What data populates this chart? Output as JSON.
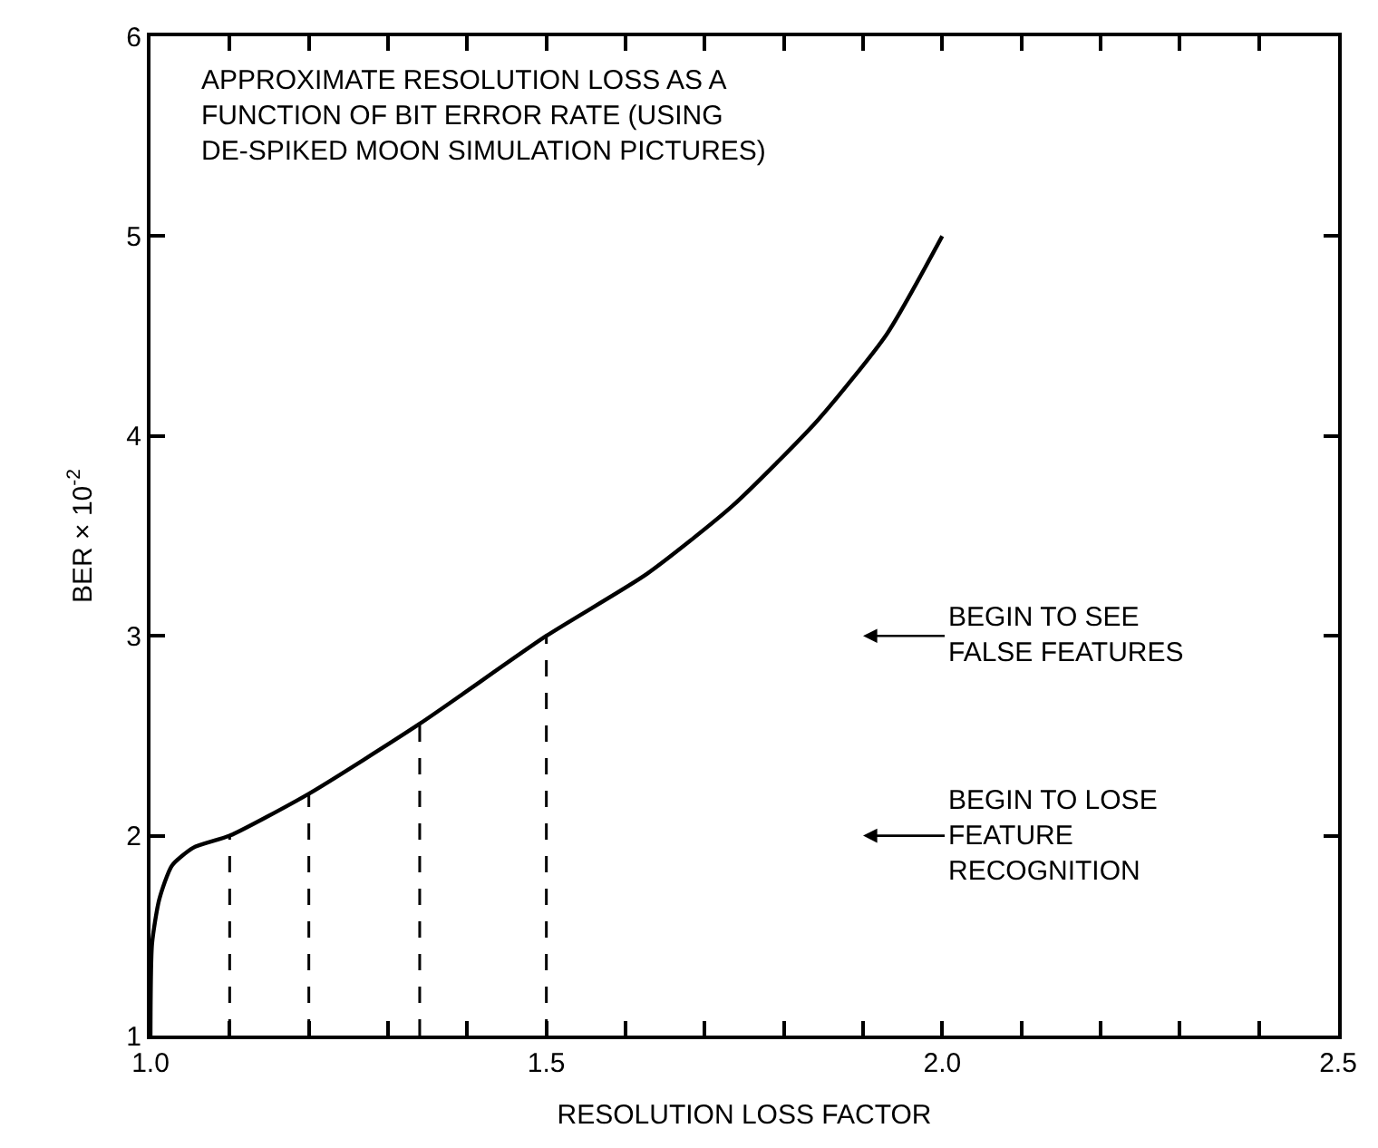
{
  "chart_data": {
    "type": "line",
    "title": "APPROXIMATE RESOLUTION LOSS AS A\nFUNCTION OF BIT ERROR RATE (USING\nDE-SPIKED MOON SIMULATION PICTURES)",
    "xlabel": "RESOLUTION LOSS FACTOR",
    "ylabel": "BER × 10$^{-2}$",
    "xlim": [
      1.0,
      2.5
    ],
    "ylim": [
      1,
      6
    ],
    "xticks": [
      {
        "value": 1.0,
        "label": "1.0"
      },
      {
        "value": 1.1,
        "label": null
      },
      {
        "value": 1.2,
        "label": null
      },
      {
        "value": 1.3,
        "label": null
      },
      {
        "value": 1.4,
        "label": null
      },
      1.5,
      {
        "value": 1.6,
        "label": null
      },
      {
        "value": 1.7,
        "label": null
      },
      {
        "value": 1.8,
        "label": null
      },
      {
        "value": 1.9,
        "label": null
      },
      {
        "value": 2.0,
        "label": "2.0"
      },
      {
        "value": 2.1,
        "label": null
      },
      {
        "value": 2.2,
        "label": null
      },
      {
        "value": 2.3,
        "label": null
      },
      {
        "value": 2.4,
        "label": null
      },
      2.5
    ],
    "yticks": [
      1,
      2,
      3,
      4,
      5,
      6
    ],
    "marker": "none",
    "series": [
      {
        "color": "#000000",
        "line_style": "solid",
        "x": [
          1.0,
          1.002,
          1.011,
          1.027,
          1.054,
          1.1,
          1.2,
          1.34,
          1.5,
          1.627,
          1.735,
          1.843,
          1.93,
          2.0
        ],
        "values": [
          1.0,
          1.46,
          1.68,
          1.85,
          1.94,
          2.0,
          2.21,
          2.56,
          3.0,
          3.31,
          3.65,
          4.08,
          4.51,
          5.0
        ]
      },
      {
        "color": "#000000",
        "line_style": "dashed",
        "x": [
          1.1,
          1.1
        ],
        "values": [
          1.0,
          2.0
        ]
      },
      {
        "color": "#000000",
        "line_style": "dashed",
        "x": [
          1.2,
          1.2
        ],
        "values": [
          1.0,
          2.21
        ]
      },
      {
        "color": "#000000",
        "line_style": "dashed",
        "x": [
          1.34,
          1.34
        ],
        "values": [
          1.0,
          2.56
        ]
      },
      {
        "color": "#000000",
        "line_style": "dashed",
        "x": [
          1.5,
          1.5
        ],
        "values": [
          1.0,
          3.0
        ]
      }
    ],
    "annotations": [
      "BEGIN TO SEE\nFALSE FEATURES",
      "BEGIN TO LOSE\nFEATURE\nRECOGNITION"
    ]
  }
}
